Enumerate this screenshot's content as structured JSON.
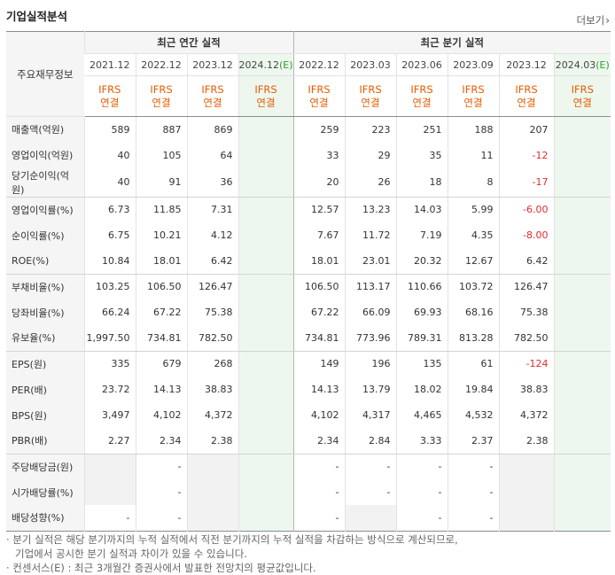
{
  "title": "기업실적분석",
  "more_label": "더보기",
  "header": {
    "label_col": "주요재무정보",
    "annual_group": "최근 연간 실적",
    "quarter_group": "최근 분기 실적",
    "annual_periods": [
      {
        "label": "2021.12",
        "estimate": false
      },
      {
        "label": "2022.12",
        "estimate": false
      },
      {
        "label": "2023.12",
        "estimate": false
      },
      {
        "label": "2024.12",
        "suffix": "(E)",
        "estimate": true
      }
    ],
    "quarter_periods": [
      {
        "label": "2022.12",
        "estimate": false
      },
      {
        "label": "2023.03",
        "estimate": false
      },
      {
        "label": "2023.06",
        "estimate": false
      },
      {
        "label": "2023.09",
        "estimate": false
      },
      {
        "label": "2023.12",
        "estimate": false
      },
      {
        "label": "2024.03",
        "suffix": "(E)",
        "estimate": true
      }
    ],
    "ifrs_line1": "IFRS",
    "ifrs_line2": "연결"
  },
  "rows": [
    {
      "label": "매출액(억원)",
      "values": [
        "589",
        "887",
        "869",
        "",
        "259",
        "223",
        "251",
        "188",
        "207",
        ""
      ]
    },
    {
      "label": "영업이익(억원)",
      "values": [
        "40",
        "105",
        "64",
        "",
        "33",
        "29",
        "35",
        "11",
        "-12",
        ""
      ]
    },
    {
      "label": "당기순이익(억원)",
      "values": [
        "40",
        "91",
        "36",
        "",
        "20",
        "26",
        "18",
        "8",
        "-17",
        ""
      ]
    },
    {
      "label": "영업이익률(%)",
      "values": [
        "6.73",
        "11.85",
        "7.31",
        "",
        "12.57",
        "13.23",
        "14.03",
        "5.99",
        "-6.00",
        ""
      ]
    },
    {
      "label": "순이익률(%)",
      "values": [
        "6.75",
        "10.21",
        "4.12",
        "",
        "7.67",
        "11.72",
        "7.19",
        "4.35",
        "-8.00",
        ""
      ]
    },
    {
      "label": "ROE(%)",
      "values": [
        "10.84",
        "18.01",
        "6.42",
        "",
        "18.01",
        "23.01",
        "20.32",
        "12.67",
        "6.42",
        ""
      ]
    },
    {
      "label": "부채비율(%)",
      "values": [
        "103.25",
        "106.50",
        "126.47",
        "",
        "106.50",
        "113.17",
        "110.66",
        "103.72",
        "126.47",
        ""
      ]
    },
    {
      "label": "당좌비율(%)",
      "values": [
        "66.24",
        "67.22",
        "75.38",
        "",
        "67.22",
        "66.09",
        "69.93",
        "68.16",
        "75.38",
        ""
      ]
    },
    {
      "label": "유보율(%)",
      "values": [
        "1,997.50",
        "734.81",
        "782.50",
        "",
        "734.81",
        "773.96",
        "789.31",
        "813.28",
        "782.50",
        ""
      ]
    },
    {
      "label": "EPS(원)",
      "values": [
        "335",
        "679",
        "268",
        "",
        "149",
        "196",
        "135",
        "61",
        "-124",
        ""
      ]
    },
    {
      "label": "PER(배)",
      "values": [
        "23.72",
        "14.13",
        "38.83",
        "",
        "14.13",
        "13.79",
        "18.02",
        "19.84",
        "38.83",
        ""
      ]
    },
    {
      "label": "BPS(원)",
      "values": [
        "3,497",
        "4,102",
        "4,372",
        "",
        "4,102",
        "4,317",
        "4,465",
        "4,532",
        "4,372",
        ""
      ]
    },
    {
      "label": "PBR(배)",
      "values": [
        "2.27",
        "2.34",
        "2.38",
        "",
        "2.34",
        "2.84",
        "3.33",
        "2.37",
        "2.38",
        ""
      ]
    },
    {
      "label": "주당배당금(원)",
      "values": [
        "",
        "-",
        "",
        "",
        "-",
        "-",
        "-",
        "-",
        "",
        ""
      ]
    },
    {
      "label": "시가배당률(%)",
      "values": [
        "",
        "-",
        "",
        "",
        "-",
        "-",
        "-",
        "-",
        "",
        ""
      ]
    },
    {
      "label": "배당성향(%)",
      "values": [
        "-",
        "-",
        "",
        "",
        "-",
        "",
        "-",
        "-",
        "",
        ""
      ]
    }
  ],
  "notes": [
    "· 분기 실적은 해당 분기까지의 누적 실적에서 직전 분기까지의 누적 실적을 차감하는 방식으로 계산되므로,",
    "기업에서 공시한 분기 실적과 차이가 있을 수 있습니다.",
    "· 컨센서스(E) : 최근 3개월간 증권사에서 발표한 전망치의 평균값입니다."
  ],
  "colors": {
    "negative": "#e32b2b",
    "ifrs": "#e65c00",
    "estimate_bg": "#eef7ee",
    "estimate_text": "#2f9d2f"
  }
}
